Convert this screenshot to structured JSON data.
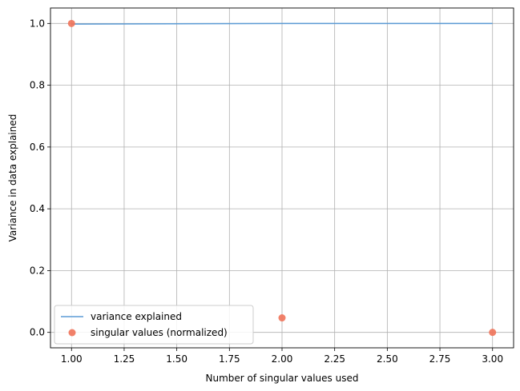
{
  "chart_data": {
    "type": "line",
    "xlabel": "Number of singular values used",
    "ylabel": "Variance in data explained",
    "xlim": [
      0.9,
      3.1
    ],
    "ylim": [
      -0.05,
      1.05
    ],
    "xticks": [
      1.0,
      1.25,
      1.5,
      1.75,
      2.0,
      2.25,
      2.5,
      2.75,
      3.0
    ],
    "xtick_labels": [
      "1.00",
      "1.25",
      "1.50",
      "1.75",
      "2.00",
      "2.25",
      "2.50",
      "2.75",
      "3.00"
    ],
    "yticks": [
      0.0,
      0.2,
      0.4,
      0.6,
      0.8,
      1.0
    ],
    "ytick_labels": [
      "0.0",
      "0.2",
      "0.4",
      "0.6",
      "0.8",
      "1.0"
    ],
    "grid": true,
    "legend_position": "lower-left",
    "series": [
      {
        "name": "variance explained",
        "kind": "line",
        "color": "#5b9bd5",
        "x": [
          1,
          2,
          3
        ],
        "y": [
          0.998,
          1.0,
          1.0
        ]
      },
      {
        "name": "singular values (normalized)",
        "kind": "scatter",
        "color": "#f0735a",
        "x": [
          1,
          2,
          3
        ],
        "y": [
          1.0,
          0.047,
          0.0
        ]
      }
    ]
  }
}
